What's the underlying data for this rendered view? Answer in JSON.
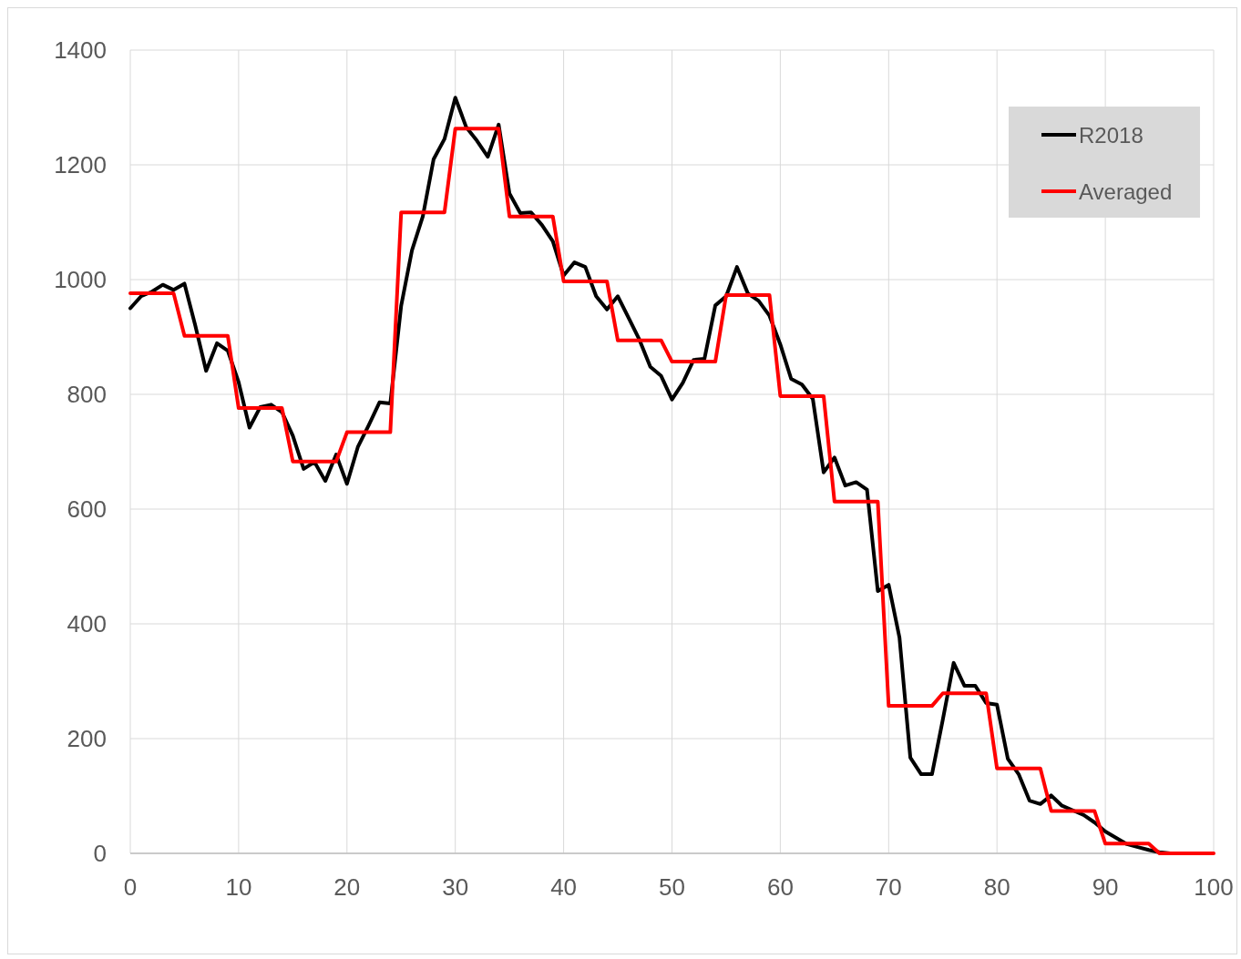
{
  "chart_data": {
    "type": "line",
    "x": [
      0,
      1,
      2,
      3,
      4,
      5,
      6,
      7,
      8,
      9,
      10,
      11,
      12,
      13,
      14,
      15,
      16,
      17,
      18,
      19,
      20,
      21,
      22,
      23,
      24,
      25,
      26,
      27,
      28,
      29,
      30,
      31,
      32,
      33,
      34,
      35,
      36,
      37,
      38,
      39,
      40,
      41,
      42,
      43,
      44,
      45,
      46,
      47,
      48,
      49,
      50,
      51,
      52,
      53,
      54,
      55,
      56,
      57,
      58,
      59,
      60,
      61,
      62,
      63,
      64,
      65,
      66,
      67,
      68,
      69,
      70,
      71,
      72,
      73,
      74,
      75,
      76,
      77,
      78,
      79,
      80,
      81,
      82,
      83,
      84,
      85,
      86,
      87,
      88,
      89,
      90,
      91,
      92,
      93,
      94,
      95,
      96,
      97,
      98,
      99,
      100
    ],
    "series": [
      {
        "name": "R2018",
        "color": "#000000",
        "values": [
          950,
          971,
          979,
          991,
          982,
          993,
          920,
          841,
          889,
          876,
          821,
          742,
          778,
          782,
          769,
          728,
          670,
          682,
          649,
          695,
          644,
          708,
          746,
          786,
          784,
          954,
          1051,
          1110,
          1210,
          1245,
          1317,
          1266,
          1242,
          1214,
          1270,
          1150,
          1116,
          1117,
          1095,
          1067,
          1007,
          1030,
          1022,
          971,
          948,
          971,
          933,
          895,
          848,
          832,
          791,
          820,
          860,
          862,
          955,
          971,
          1022,
          976,
          963,
          937,
          887,
          827,
          817,
          792,
          664,
          690,
          641,
          647,
          634,
          457,
          468,
          376,
          167,
          138,
          138,
          233,
          332,
          292,
          292,
          262,
          259,
          165,
          138,
          92,
          86,
          101,
          83,
          75,
          67,
          54,
          38,
          27,
          16,
          11,
          6,
          2,
          0,
          0,
          null,
          null,
          null
        ]
      },
      {
        "name": "Averaged",
        "color": "#ff0000",
        "values": [
          976,
          976,
          976,
          976,
          976,
          902,
          902,
          902,
          902,
          902,
          776,
          776,
          776,
          776,
          776,
          683,
          683,
          683,
          683,
          683,
          734,
          734,
          734,
          734,
          734,
          1117,
          1117,
          1117,
          1117,
          1117,
          1263,
          1263,
          1263,
          1263,
          1263,
          1110,
          1110,
          1110,
          1110,
          1110,
          997,
          997,
          997,
          997,
          997,
          894,
          894,
          894,
          894,
          894,
          857,
          857,
          857,
          857,
          857,
          973,
          973,
          973,
          973,
          973,
          797,
          797,
          797,
          797,
          797,
          613,
          613,
          613,
          613,
          613,
          257,
          257,
          257,
          257,
          257,
          279,
          279,
          279,
          279,
          279,
          148,
          148,
          148,
          148,
          148,
          74,
          74,
          74,
          74,
          74,
          17,
          17,
          17,
          17,
          17,
          0,
          0,
          0,
          0,
          0,
          0
        ]
      }
    ],
    "xlim": [
      0,
      100
    ],
    "xticks": [
      0,
      10,
      20,
      30,
      40,
      50,
      60,
      70,
      80,
      90,
      100
    ],
    "ylim": [
      0,
      1400
    ],
    "yticks": [
      0,
      200,
      400,
      600,
      800,
      1000,
      1200,
      1400
    ],
    "grid": true,
    "legend": "top right",
    "marker": "none",
    "line_style": "solid"
  }
}
